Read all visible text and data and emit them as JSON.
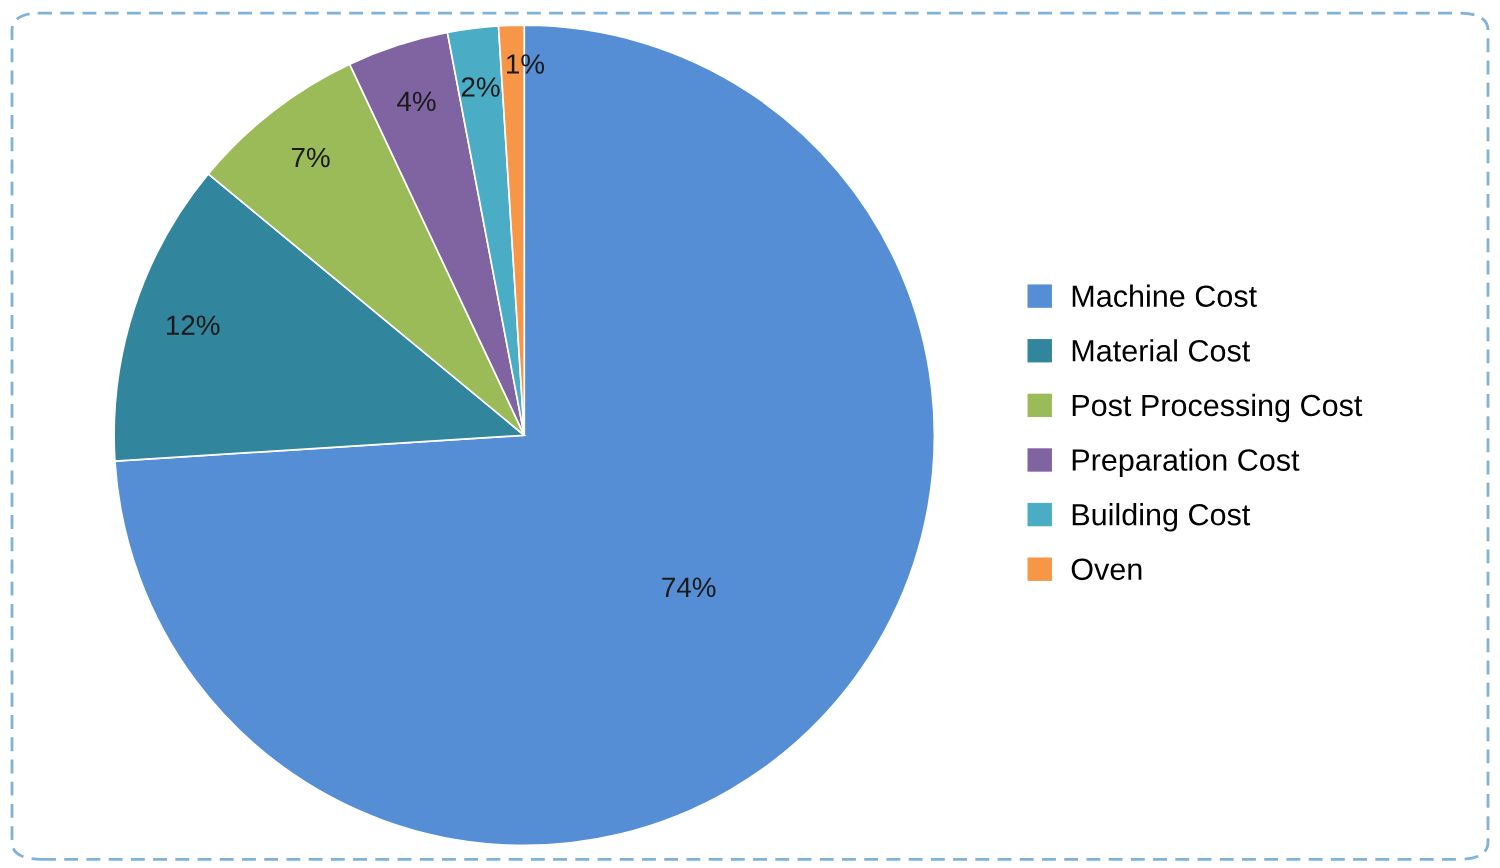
{
  "chart_data": {
    "type": "pie",
    "categories": [
      "Machine Cost",
      "Material Cost",
      "Post Processing Cost",
      "Preparation Cost",
      "Building Cost",
      "Oven"
    ],
    "values": [
      74,
      12,
      7,
      4,
      2,
      1
    ],
    "colors": [
      "#558ed5",
      "#31859c",
      "#9bbb59",
      "#8064a2",
      "#4bacc6",
      "#f79646"
    ],
    "value_labels": [
      "74%",
      "12%",
      "7%",
      "4%",
      "2%",
      "1%"
    ],
    "legend": "right"
  }
}
